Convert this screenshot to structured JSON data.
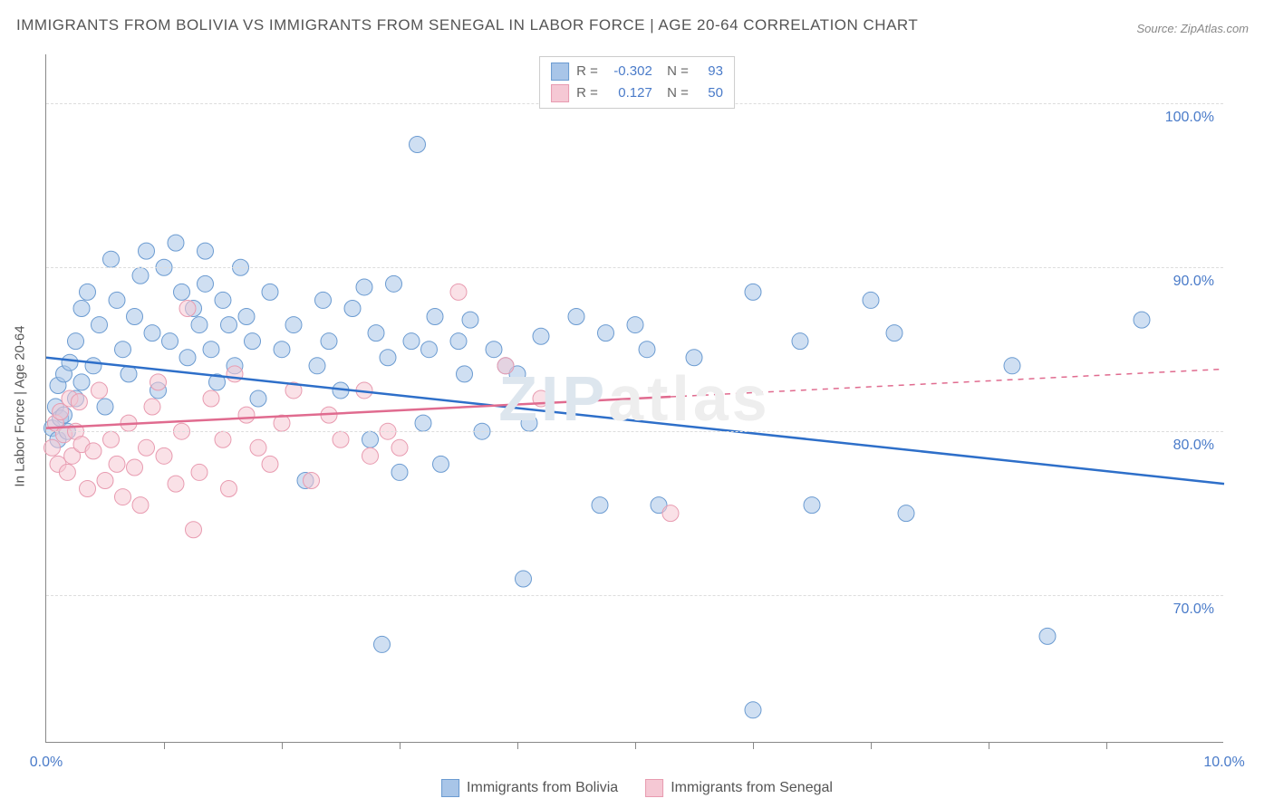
{
  "title": "IMMIGRANTS FROM BOLIVIA VS IMMIGRANTS FROM SENEGAL IN LABOR FORCE | AGE 20-64 CORRELATION CHART",
  "source": "Source: ZipAtlas.com",
  "ylabel": "In Labor Force | Age 20-64",
  "watermark_a": "ZIP",
  "watermark_b": "atlas",
  "chart": {
    "type": "scatter",
    "background_color": "#ffffff",
    "grid_color": "#dddddd",
    "axis_color": "#888888",
    "xlim": [
      0.0,
      10.0
    ],
    "ylim": [
      61.0,
      103.0
    ],
    "x_tick_step": 1.0,
    "x_tick_labels": [
      {
        "x": 0.0,
        "label": "0.0%"
      },
      {
        "x": 10.0,
        "label": "10.0%"
      }
    ],
    "y_ticks": [
      70.0,
      80.0,
      90.0,
      100.0
    ],
    "y_tick_labels": [
      "70.0%",
      "80.0%",
      "90.0%",
      "100.0%"
    ],
    "tick_label_color": "#4a7bc9",
    "tick_label_fontsize": 16,
    "title_fontsize": 17,
    "title_color": "#555555",
    "marker_radius": 9,
    "marker_opacity": 0.55,
    "line_width": 2.5
  },
  "series": [
    {
      "name": "Immigrants from Bolivia",
      "color_fill": "#a8c5e8",
      "color_stroke": "#6b9bd1",
      "line_color": "#2e6fc9",
      "R": "-0.302",
      "N": "93",
      "regression": {
        "x1": 0.0,
        "y1": 84.5,
        "x2": 10.0,
        "y2": 76.8
      },
      "xmax_solid": 10.0,
      "points": [
        [
          0.05,
          80.2
        ],
        [
          0.08,
          81.5
        ],
        [
          0.1,
          82.8
        ],
        [
          0.1,
          79.5
        ],
        [
          0.12,
          80.8
        ],
        [
          0.15,
          83.5
        ],
        [
          0.15,
          81.0
        ],
        [
          0.18,
          80.0
        ],
        [
          0.2,
          84.2
        ],
        [
          0.25,
          85.5
        ],
        [
          0.25,
          82.0
        ],
        [
          0.3,
          87.5
        ],
        [
          0.3,
          83.0
        ],
        [
          0.35,
          88.5
        ],
        [
          0.4,
          84.0
        ],
        [
          0.45,
          86.5
        ],
        [
          0.5,
          81.5
        ],
        [
          0.55,
          90.5
        ],
        [
          0.6,
          88.0
        ],
        [
          0.65,
          85.0
        ],
        [
          0.7,
          83.5
        ],
        [
          0.75,
          87.0
        ],
        [
          0.8,
          89.5
        ],
        [
          0.85,
          91.0
        ],
        [
          0.9,
          86.0
        ],
        [
          0.95,
          82.5
        ],
        [
          1.0,
          90.0
        ],
        [
          1.05,
          85.5
        ],
        [
          1.1,
          91.5
        ],
        [
          1.15,
          88.5
        ],
        [
          1.2,
          84.5
        ],
        [
          1.25,
          87.5
        ],
        [
          1.3,
          86.5
        ],
        [
          1.35,
          89.0
        ],
        [
          1.35,
          91.0
        ],
        [
          1.4,
          85.0
        ],
        [
          1.45,
          83.0
        ],
        [
          1.5,
          88.0
        ],
        [
          1.55,
          86.5
        ],
        [
          1.6,
          84.0
        ],
        [
          1.65,
          90.0
        ],
        [
          1.7,
          87.0
        ],
        [
          1.75,
          85.5
        ],
        [
          1.8,
          82.0
        ],
        [
          1.9,
          88.5
        ],
        [
          2.0,
          85.0
        ],
        [
          2.1,
          86.5
        ],
        [
          2.2,
          77.0
        ],
        [
          2.3,
          84.0
        ],
        [
          2.35,
          88.0
        ],
        [
          2.4,
          85.5
        ],
        [
          2.5,
          82.5
        ],
        [
          2.6,
          87.5
        ],
        [
          2.7,
          88.8
        ],
        [
          2.75,
          79.5
        ],
        [
          2.8,
          86.0
        ],
        [
          2.85,
          67.0
        ],
        [
          2.9,
          84.5
        ],
        [
          2.95,
          89.0
        ],
        [
          3.0,
          77.5
        ],
        [
          3.1,
          85.5
        ],
        [
          3.15,
          97.5
        ],
        [
          3.2,
          80.5
        ],
        [
          3.25,
          85.0
        ],
        [
          3.3,
          87.0
        ],
        [
          3.35,
          78.0
        ],
        [
          3.5,
          85.5
        ],
        [
          3.55,
          83.5
        ],
        [
          3.6,
          86.8
        ],
        [
          3.7,
          80.0
        ],
        [
          3.8,
          85.0
        ],
        [
          3.9,
          84.0
        ],
        [
          4.0,
          83.5
        ],
        [
          4.05,
          71.0
        ],
        [
          4.1,
          80.5
        ],
        [
          4.2,
          85.8
        ],
        [
          4.5,
          87.0
        ],
        [
          4.7,
          75.5
        ],
        [
          4.75,
          86.0
        ],
        [
          5.0,
          86.5
        ],
        [
          5.1,
          85.0
        ],
        [
          5.2,
          75.5
        ],
        [
          5.5,
          84.5
        ],
        [
          6.0,
          88.5
        ],
        [
          6.0,
          63.0
        ],
        [
          6.4,
          85.5
        ],
        [
          6.5,
          75.5
        ],
        [
          7.0,
          88.0
        ],
        [
          7.2,
          86.0
        ],
        [
          7.3,
          75.0
        ],
        [
          8.2,
          84.0
        ],
        [
          8.5,
          67.5
        ],
        [
          9.3,
          86.8
        ]
      ]
    },
    {
      "name": "Immigrants from Senegal",
      "color_fill": "#f5c8d4",
      "color_stroke": "#e89bb0",
      "line_color": "#e06b8f",
      "R": "0.127",
      "N": "50",
      "regression": {
        "x1": 0.0,
        "y1": 80.2,
        "x2": 10.0,
        "y2": 83.8
      },
      "xmax_solid": 5.3,
      "points": [
        [
          0.05,
          79.0
        ],
        [
          0.08,
          80.5
        ],
        [
          0.1,
          78.0
        ],
        [
          0.12,
          81.2
        ],
        [
          0.15,
          79.8
        ],
        [
          0.18,
          77.5
        ],
        [
          0.2,
          82.0
        ],
        [
          0.22,
          78.5
        ],
        [
          0.25,
          80.0
        ],
        [
          0.28,
          81.8
        ],
        [
          0.3,
          79.2
        ],
        [
          0.35,
          76.5
        ],
        [
          0.4,
          78.8
        ],
        [
          0.45,
          82.5
        ],
        [
          0.5,
          77.0
        ],
        [
          0.55,
          79.5
        ],
        [
          0.6,
          78.0
        ],
        [
          0.65,
          76.0
        ],
        [
          0.7,
          80.5
        ],
        [
          0.75,
          77.8
        ],
        [
          0.8,
          75.5
        ],
        [
          0.85,
          79.0
        ],
        [
          0.9,
          81.5
        ],
        [
          0.95,
          83.0
        ],
        [
          1.0,
          78.5
        ],
        [
          1.1,
          76.8
        ],
        [
          1.15,
          80.0
        ],
        [
          1.2,
          87.5
        ],
        [
          1.25,
          74.0
        ],
        [
          1.3,
          77.5
        ],
        [
          1.4,
          82.0
        ],
        [
          1.5,
          79.5
        ],
        [
          1.55,
          76.5
        ],
        [
          1.6,
          83.5
        ],
        [
          1.7,
          81.0
        ],
        [
          1.8,
          79.0
        ],
        [
          1.9,
          78.0
        ],
        [
          2.0,
          80.5
        ],
        [
          2.1,
          82.5
        ],
        [
          2.25,
          77.0
        ],
        [
          2.4,
          81.0
        ],
        [
          2.5,
          79.5
        ],
        [
          2.7,
          82.5
        ],
        [
          2.75,
          78.5
        ],
        [
          2.9,
          80.0
        ],
        [
          3.0,
          79.0
        ],
        [
          3.5,
          88.5
        ],
        [
          3.9,
          84.0
        ],
        [
          5.3,
          75.0
        ],
        [
          4.2,
          82.0
        ]
      ]
    }
  ],
  "legend_bottom": [
    {
      "label": "Immigrants from Bolivia",
      "fill": "#a8c5e8",
      "stroke": "#6b9bd1"
    },
    {
      "label": "Immigrants from Senegal",
      "fill": "#f5c8d4",
      "stroke": "#e89bb0"
    }
  ]
}
